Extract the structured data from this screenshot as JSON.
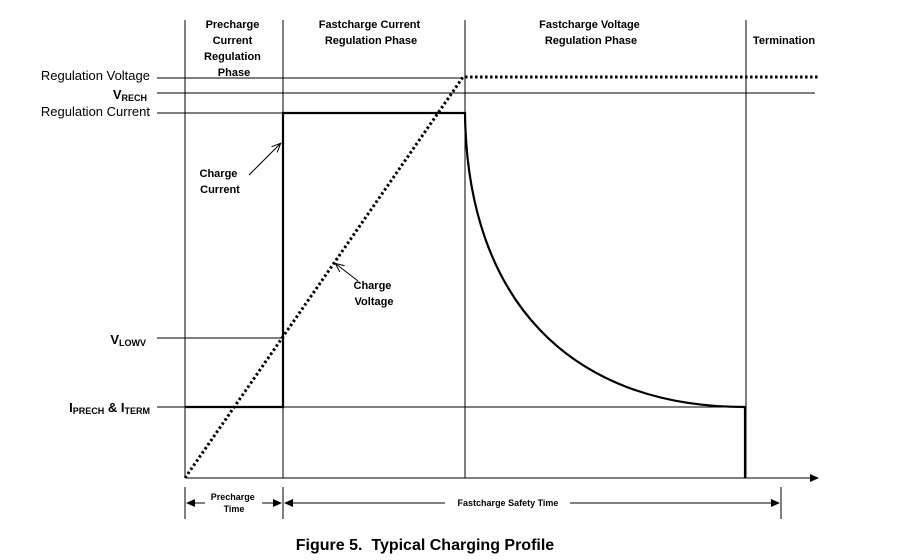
{
  "phases": {
    "precharge": [
      "Precharge",
      "Current",
      "Regulation",
      "Phase"
    ],
    "fastcharge_current": [
      "Fastcharge Current",
      "Regulation Phase"
    ],
    "fastcharge_voltage": [
      "Fastcharge Voltage",
      "Regulation Phase"
    ],
    "termination": [
      "Termination"
    ]
  },
  "levels": {
    "regulation_voltage": "Regulation Voltage",
    "vrech_main": "V",
    "vrech_sub": "RECH",
    "regulation_current": "Regulation Current",
    "vlowv_main": "V",
    "vlowv_sub": "LOWV",
    "iprech_main": "I",
    "iprech_sub": "PRECH",
    "amp": " & ",
    "iterm_main": "I",
    "iterm_sub": "TERM"
  },
  "annotations": {
    "charge_current": [
      "Charge",
      "Current"
    ],
    "charge_voltage": [
      "Charge",
      "Voltage"
    ]
  },
  "timing": {
    "precharge_time": [
      "Precharge",
      "Time"
    ],
    "fastcharge_safety_time": "Fastcharge Safety Time"
  },
  "caption": "Figure 5.  Typical Charging Profile"
}
